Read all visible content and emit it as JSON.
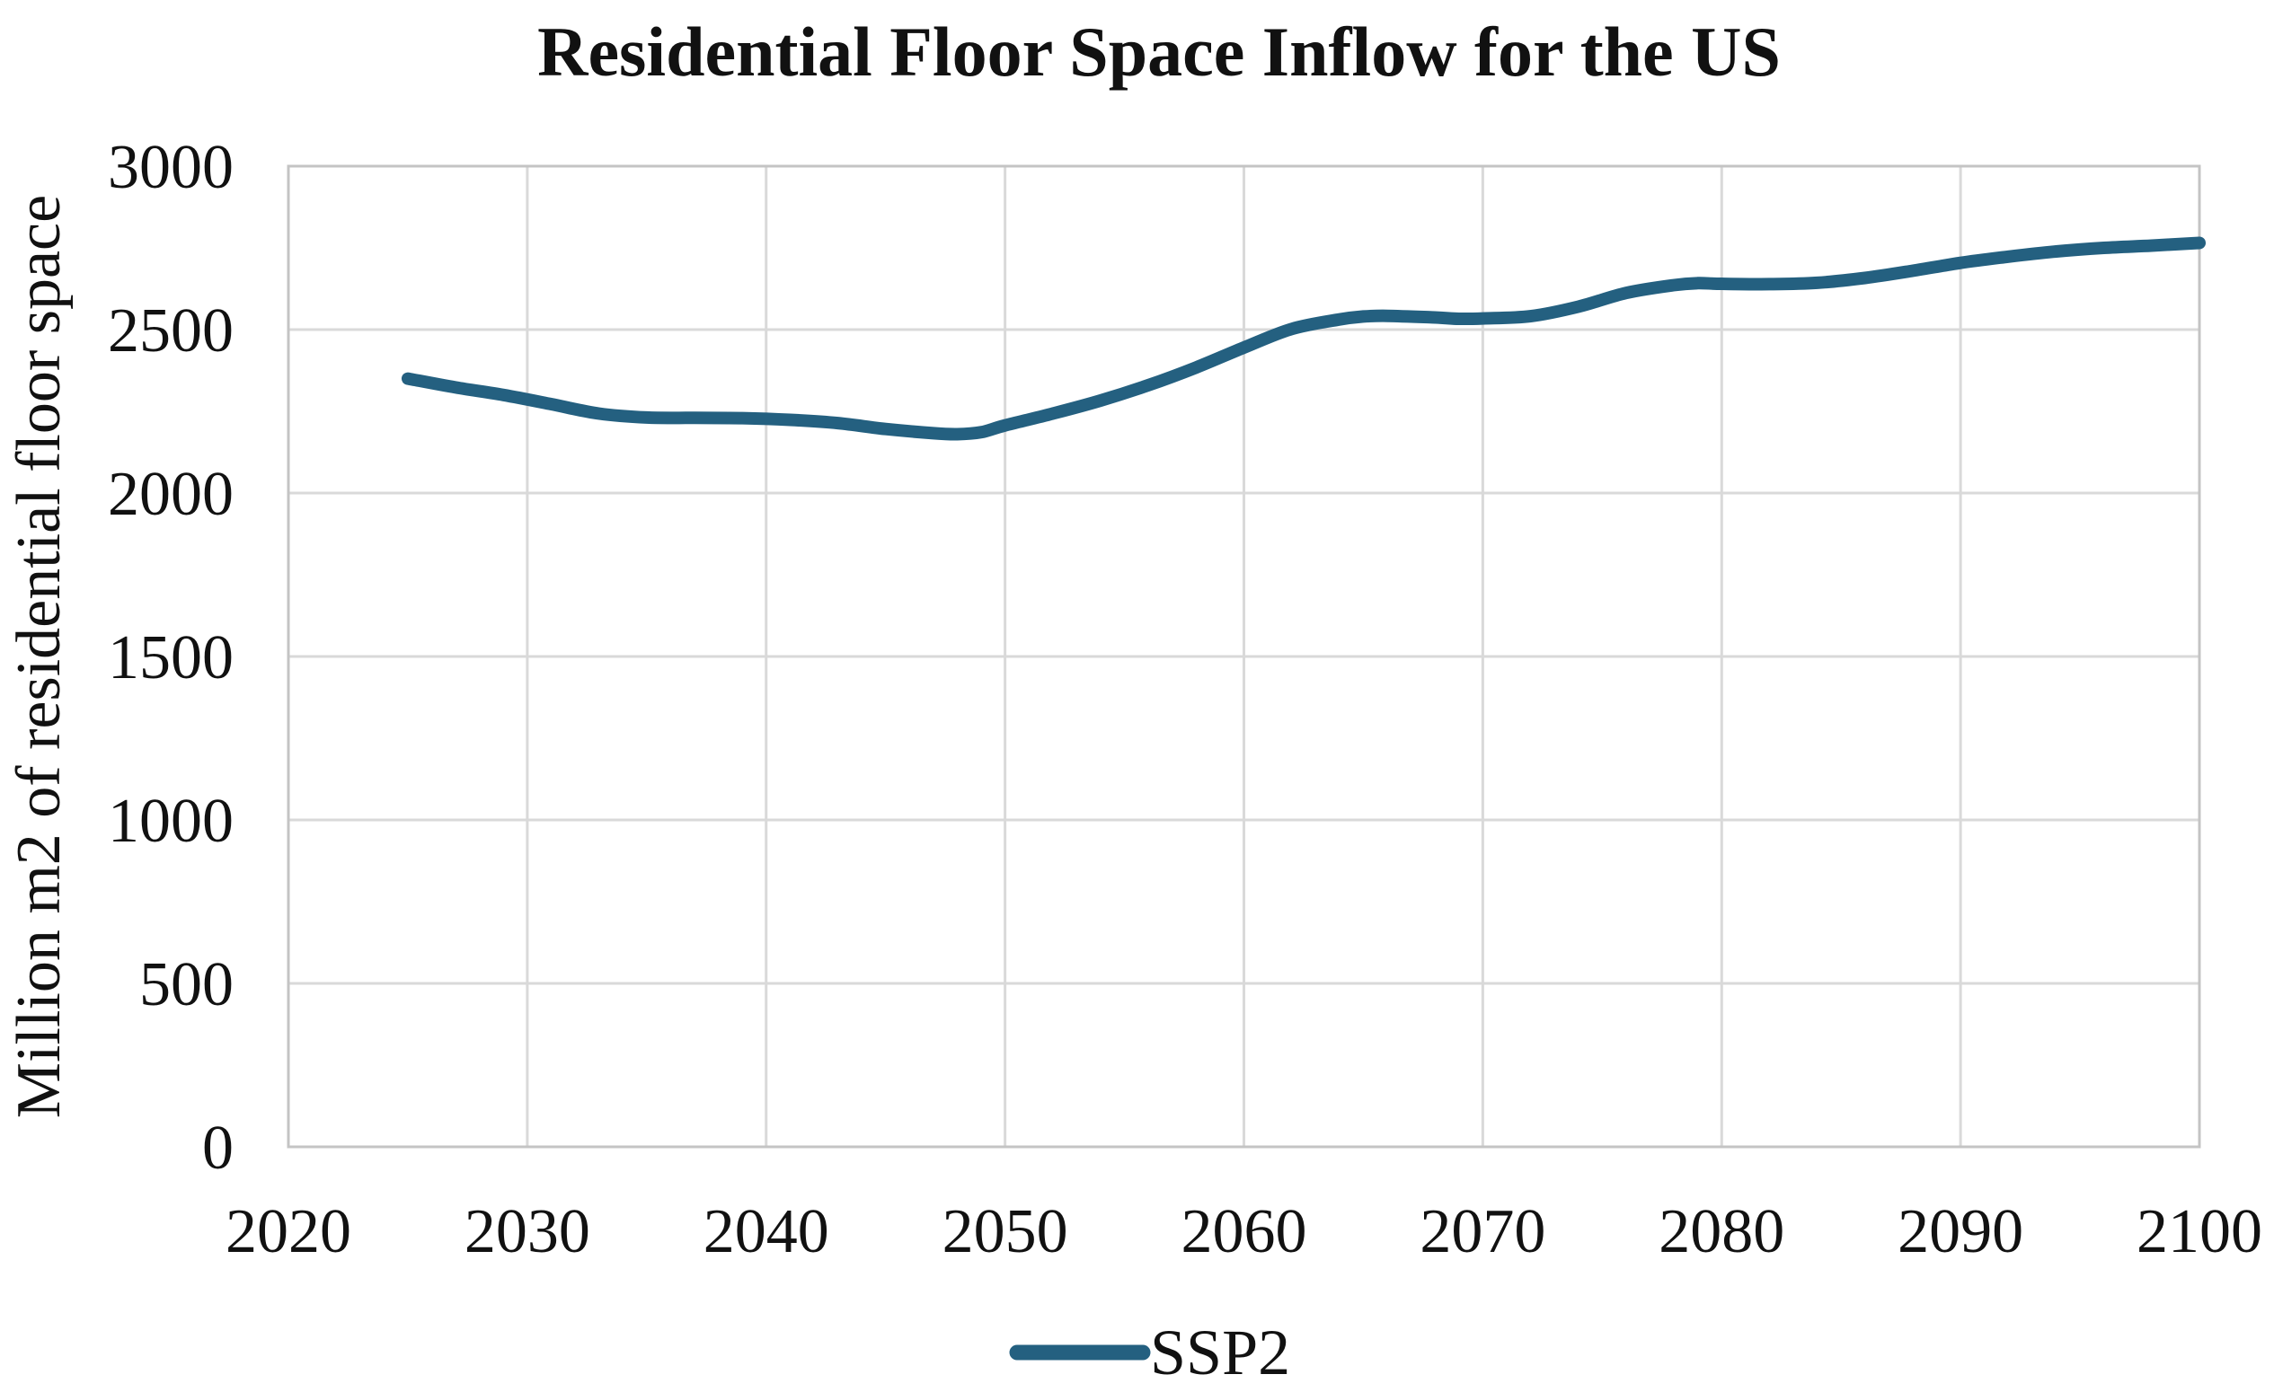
{
  "title": "Residential Floor Space Inflow for the US",
  "colors": {
    "series": "#246080",
    "gridline": "#D9D9D9",
    "plot_border": "#C4C4C4",
    "text": "#111111",
    "background": "#FFFFFF"
  },
  "legend": {
    "position": "bottom",
    "entries": [
      {
        "label": "SSP2",
        "swatch": "line",
        "color": "#246080"
      }
    ]
  },
  "chart_data": {
    "type": "line",
    "title": "Residential Floor Space Inflow for the US",
    "xlabel": "",
    "ylabel": "Million m2 of residential floor space",
    "xlim": [
      2020,
      2100
    ],
    "ylim": [
      0,
      3000
    ],
    "x_ticks": [
      2020,
      2030,
      2040,
      2050,
      2060,
      2070,
      2080,
      2090,
      2100
    ],
    "y_ticks": [
      0,
      500,
      1000,
      1500,
      2000,
      2500,
      3000
    ],
    "grid": true,
    "legend_position": "bottom",
    "series": [
      {
        "name": "SSP2",
        "color": "#246080",
        "x": [
          2025,
          2027,
          2029,
          2031,
          2033,
          2035,
          2037,
          2039,
          2041,
          2043,
          2045,
          2047,
          2048,
          2049,
          2050,
          2052,
          2054,
          2056,
          2058,
          2060,
          2062,
          2064,
          2065,
          2066,
          2068,
          2069,
          2070,
          2072,
          2074,
          2076,
          2078,
          2079,
          2080,
          2082,
          2084,
          2086,
          2088,
          2090,
          2092,
          2094,
          2096,
          2098,
          2100
        ],
        "y": [
          2350,
          2323,
          2300,
          2272,
          2243,
          2231,
          2230,
          2229,
          2224,
          2214,
          2196,
          2183,
          2180,
          2186,
          2207,
          2243,
          2283,
          2330,
          2384,
          2445,
          2502,
          2531,
          2540,
          2542,
          2537,
          2533,
          2534,
          2541,
          2570,
          2612,
          2636,
          2642,
          2640,
          2639,
          2643,
          2658,
          2680,
          2704,
          2723,
          2739,
          2750,
          2757,
          2765
        ]
      }
    ]
  }
}
